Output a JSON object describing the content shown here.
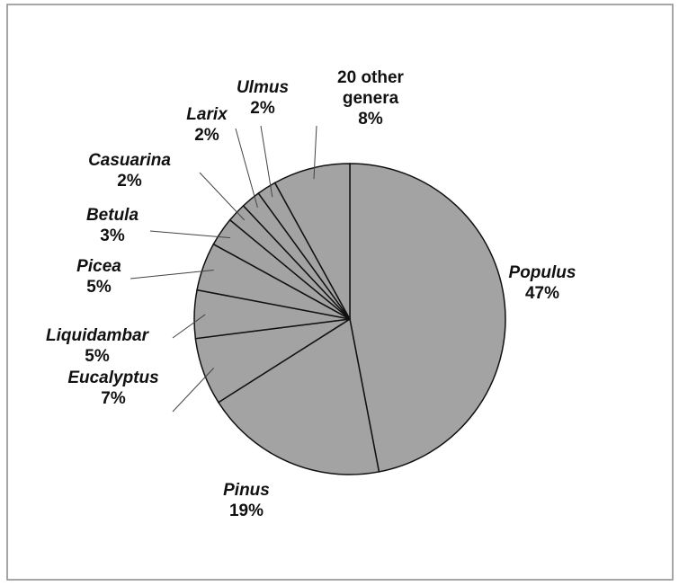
{
  "chart_data": {
    "type": "pie",
    "categories": [
      "Populus",
      "Pinus",
      "Eucalyptus",
      "Liquidambar",
      "Picea",
      "Betula",
      "Casuarina",
      "Larix",
      "Ulmus",
      "20 other genera"
    ],
    "values": [
      47,
      19,
      7,
      5,
      5,
      3,
      2,
      2,
      2,
      8
    ],
    "value_labels": [
      "47%",
      "19%",
      "7%",
      "5%",
      "5%",
      "3%",
      "2%",
      "2%",
      "2%",
      "8%"
    ],
    "color": "#a3a3a3"
  }
}
